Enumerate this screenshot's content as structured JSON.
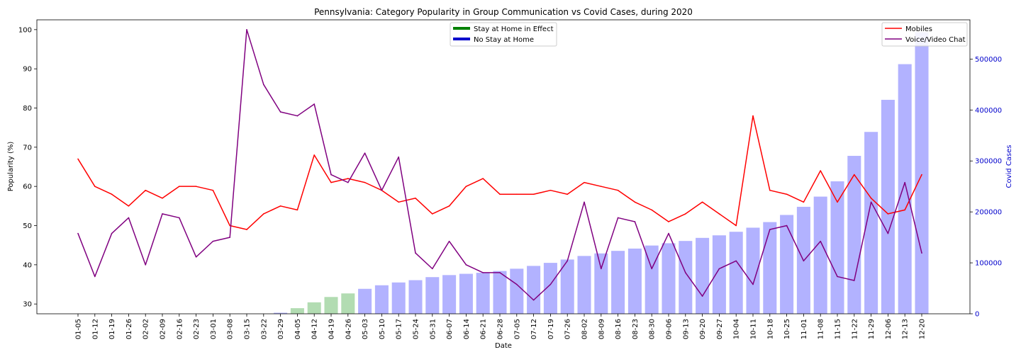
{
  "chart_data": {
    "type": "line",
    "title": "Pennsylvania: Category Popularity in Group Communication vs Covid Cases, during 2020",
    "xlabel": "Date",
    "ylabel": "Popularity (%)",
    "y2label": "Covid Cases",
    "ylim": [
      27.5,
      102.5
    ],
    "y2lim": [
      0,
      577000
    ],
    "yticks": [
      30,
      40,
      50,
      60,
      70,
      80,
      90,
      100
    ],
    "y2ticks": [
      0,
      100000,
      200000,
      300000,
      400000,
      500000
    ],
    "categories": [
      "01-05",
      "01-12",
      "01-19",
      "01-26",
      "02-02",
      "02-09",
      "02-16",
      "02-23",
      "03-01",
      "03-08",
      "03-15",
      "03-22",
      "03-29",
      "04-05",
      "04-12",
      "04-19",
      "04-26",
      "05-03",
      "05-10",
      "05-17",
      "05-24",
      "05-31",
      "06-07",
      "06-14",
      "06-21",
      "06-28",
      "07-05",
      "07-12",
      "07-19",
      "07-26",
      "08-02",
      "08-09",
      "08-16",
      "08-23",
      "08-30",
      "09-06",
      "09-13",
      "09-20",
      "09-27",
      "10-04",
      "10-11",
      "10-18",
      "10-25",
      "11-01",
      "11-08",
      "11-15",
      "11-22",
      "11-29",
      "12-06",
      "12-13",
      "12-20"
    ],
    "series": [
      {
        "name": "Mobiles",
        "color": "#ff0000",
        "values": [
          67,
          60,
          58,
          55,
          59,
          57,
          60,
          60,
          59,
          50,
          49,
          53,
          55,
          54,
          68,
          61,
          62,
          61,
          59,
          56,
          57,
          53,
          55,
          60,
          62,
          58,
          58,
          58,
          59,
          58,
          61,
          60,
          59,
          56,
          54,
          51,
          53,
          56,
          53,
          50,
          78,
          59,
          58,
          56,
          64,
          56,
          63,
          57,
          53,
          54,
          63
        ]
      },
      {
        "name": "Voice/Video Chat",
        "color": "#800080",
        "values": [
          48,
          37,
          48,
          52,
          40,
          53,
          52,
          42,
          46,
          47,
          100,
          86,
          79,
          78,
          81,
          63,
          61,
          68.5,
          59,
          67.5,
          43,
          39,
          46,
          40,
          38,
          38,
          35,
          31,
          35,
          41,
          56,
          39,
          52,
          51,
          39,
          48,
          38,
          32,
          39,
          41,
          35,
          49,
          50,
          41,
          46,
          37,
          36,
          56,
          48,
          61,
          43
        ]
      }
    ],
    "bars": {
      "name": "Covid Cases",
      "values": [
        0,
        0,
        0,
        0,
        0,
        0,
        0,
        0,
        0,
        0,
        0,
        0,
        2000,
        11000,
        22500,
        33000,
        40000,
        49000,
        56000,
        61500,
        66000,
        72000,
        76000,
        78500,
        80500,
        84000,
        88500,
        94000,
        100000,
        106500,
        113500,
        118500,
        123500,
        128000,
        134000,
        138500,
        143000,
        149000,
        154000,
        161000,
        169000,
        180000,
        194000,
        210000,
        230000,
        260000,
        310000,
        357000,
        420000,
        490000,
        553000
      ],
      "stay_home_color": "#b2dcb2",
      "no_stay_color": "#b2b2ff",
      "stay_home_indices": [
        13,
        16
      ]
    },
    "legend_left": {
      "placement": "upper-center",
      "entries": [
        {
          "label": "Stay at Home in Effect",
          "color": "#008000"
        },
        {
          "label": "No Stay at Home",
          "color": "#0000cc"
        }
      ]
    },
    "legend_right": {
      "placement": "upper-right",
      "entries": [
        {
          "label": "Mobiles",
          "color": "#ff0000"
        },
        {
          "label": "Voice/Video Chat",
          "color": "#800080"
        }
      ]
    }
  }
}
